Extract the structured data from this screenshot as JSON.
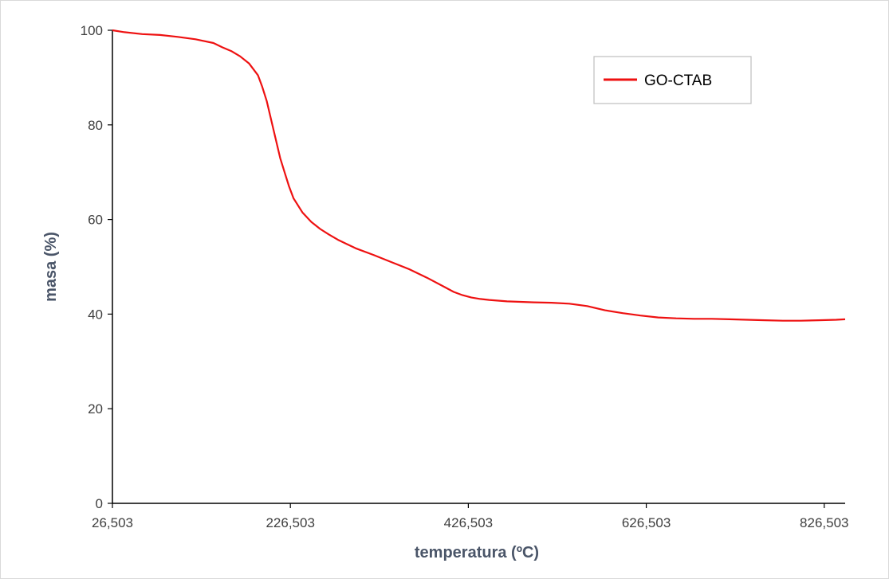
{
  "chart_data": {
    "type": "line",
    "title": "",
    "xlabel": "temperatura (ºC)",
    "ylabel": "masa (%)",
    "xlim": [
      26.503,
      850
    ],
    "ylim": [
      0,
      100
    ],
    "x_ticks": [
      26.503,
      226.503,
      426.503,
      626.503,
      826.503
    ],
    "x_tick_labels": [
      "26,503",
      "226,503",
      "426,503",
      "626,503",
      "826,503"
    ],
    "y_ticks": [
      0,
      20,
      40,
      60,
      80,
      100
    ],
    "y_tick_labels": [
      "0",
      "20",
      "40",
      "60",
      "80",
      "100"
    ],
    "grid": false,
    "legend_position": "top-right",
    "series": [
      {
        "name": "GO-CTAB",
        "color": "#ee1111",
        "x": [
          26.5,
          40,
          60,
          80,
          100,
          120,
          140,
          150,
          160,
          170,
          180,
          190,
          195,
          200,
          205,
          210,
          215,
          220,
          225,
          230,
          235,
          240,
          245,
          250,
          260,
          270,
          280,
          290,
          300,
          320,
          340,
          360,
          380,
          400,
          410,
          420,
          430,
          440,
          450,
          470,
          500,
          520,
          540,
          560,
          580,
          600,
          620,
          640,
          660,
          680,
          700,
          720,
          740,
          760,
          780,
          800,
          820,
          840,
          850
        ],
        "y": [
          100,
          99.6,
          99.2,
          99.0,
          98.6,
          98.1,
          97.3,
          96.4,
          95.6,
          94.5,
          93.0,
          90.5,
          88.0,
          85.0,
          81.0,
          77.0,
          73.0,
          70.0,
          67.0,
          64.5,
          63.0,
          61.5,
          60.5,
          59.5,
          58.0,
          56.8,
          55.7,
          54.8,
          53.9,
          52.5,
          51.0,
          49.5,
          47.7,
          45.7,
          44.7,
          44.0,
          43.5,
          43.2,
          43.0,
          42.7,
          42.5,
          42.4,
          42.2,
          41.7,
          40.8,
          40.2,
          39.7,
          39.3,
          39.1,
          39.0,
          39.0,
          38.9,
          38.8,
          38.7,
          38.6,
          38.6,
          38.7,
          38.8,
          38.9
        ]
      }
    ]
  }
}
